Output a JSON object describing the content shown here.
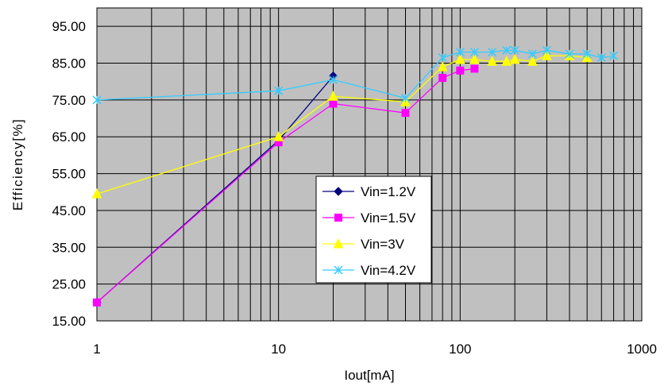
{
  "chart_data": {
    "type": "line",
    "xlabel": "Iout[mA]",
    "ylabel": "Efficiency[%]",
    "x_scale": "log",
    "xlim": [
      1,
      1000
    ],
    "ylim": [
      15,
      100
    ],
    "xticks": [
      "1",
      "10",
      "100",
      "1000"
    ],
    "yticks": [
      "15.00",
      "25.00",
      "35.00",
      "45.00",
      "55.00",
      "65.00",
      "75.00",
      "85.00",
      "95.00"
    ],
    "grid": true,
    "legend_position": "center",
    "colors": {
      "plot_background": "#c0c0c0",
      "grid": "#000000"
    },
    "series": [
      {
        "name": "Vin=1.2V",
        "color": "#000080",
        "marker": "diamond",
        "x": [
          1,
          10,
          20
        ],
        "y": [
          20.0,
          64.0,
          81.5
        ]
      },
      {
        "name": "Vin=1.5V",
        "color": "#ff00ff",
        "marker": "square",
        "x": [
          1,
          10,
          20,
          50,
          80,
          100,
          120
        ],
        "y": [
          20.0,
          63.5,
          74.0,
          71.5,
          81.0,
          83.0,
          83.5
        ]
      },
      {
        "name": "Vin=3V",
        "color": "#ffff00",
        "marker": "triangle",
        "x": [
          1,
          10,
          20,
          50,
          80,
          100,
          120,
          150,
          180,
          200,
          250,
          300,
          400,
          500
        ],
        "y": [
          49.5,
          65.0,
          76.0,
          74.5,
          84.0,
          86.0,
          86.0,
          85.5,
          85.5,
          86.0,
          85.5,
          87.0,
          87.0,
          86.5
        ]
      },
      {
        "name": "Vin=4.2V",
        "color": "#33ccff",
        "marker": "x",
        "x": [
          1,
          10,
          20,
          50,
          80,
          100,
          120,
          150,
          180,
          200,
          250,
          300,
          400,
          500,
          600,
          700
        ],
        "y": [
          75.0,
          77.5,
          80.5,
          75.5,
          86.5,
          88.0,
          88.0,
          88.0,
          88.5,
          88.5,
          87.5,
          88.5,
          87.5,
          87.5,
          86.5,
          87.0
        ]
      }
    ]
  }
}
